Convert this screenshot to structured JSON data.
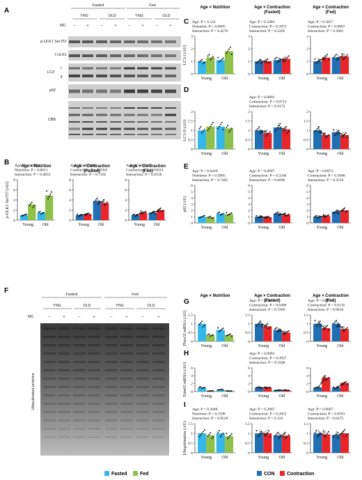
{
  "panel_letters": [
    "A",
    "B",
    "C",
    "D",
    "E",
    "F",
    "G",
    "H",
    "I"
  ],
  "blot_a": {
    "groups": [
      "Fasted",
      "Fed"
    ],
    "subgroups": [
      "YNG",
      "OLD",
      "YNG",
      "OLD"
    ],
    "mc_label": "MC",
    "mc_signs": [
      "−",
      "+",
      "−",
      "+",
      "−",
      "+",
      "−",
      "+"
    ],
    "rows": [
      "p-ULK1 Ser757",
      "t-ULK1",
      "LC3",
      "p62",
      "CBB"
    ],
    "lc3_bands": [
      "I",
      "II"
    ]
  },
  "blot_f": {
    "groups": [
      "Fasted",
      "Fed"
    ],
    "subgroups": [
      "YNG",
      "OLD",
      "YNG",
      "OLD"
    ],
    "mc_label": "MC",
    "mc_signs": [
      "−",
      "+",
      "−",
      "+",
      "−",
      "+",
      "−",
      "+"
    ],
    "ylabel": "Ubiquitinated proteins"
  },
  "legend": {
    "fasted": "Fasted",
    "fed": "Fed",
    "con": "CON",
    "contraction": "Contraction",
    "colors": {
      "fasted": "#35b6e8",
      "fed": "#8fc04a",
      "con": "#1f6fb5",
      "contraction": "#e8262a"
    }
  },
  "chart_data": [
    {
      "id": "B1",
      "type": "bar",
      "title": "Age × Nutrition",
      "ylabel": "p-ULK1 Ser757 (AU)",
      "categories": [
        "Young",
        "Old"
      ],
      "ylim": [
        0,
        8
      ],
      "yticks": [
        "0",
        "2",
        "4",
        "6",
        "8"
      ],
      "series": [
        {
          "name": "Fasted",
          "values": [
            1.0,
            1.5
          ]
        },
        {
          "name": "Fed",
          "values": [
            3.1,
            4.9
          ]
        }
      ],
      "stats": [
        "Age: P = 0.0001",
        "Nutrition: P = 0.0011",
        "Interaction: P = 0.4855"
      ]
    },
    {
      "id": "B2",
      "type": "bar",
      "title": "Age × Contraction (Fasted)",
      "categories": [
        "Young",
        "Old"
      ],
      "ylim": [
        0,
        8
      ],
      "yticks": [
        "0",
        "2",
        "4",
        "6",
        "8"
      ],
      "series": [
        {
          "name": "CON",
          "values": [
            1.0,
            3.8
          ]
        },
        {
          "name": "Contraction",
          "values": [
            1.2,
            3.4
          ]
        }
      ],
      "stats": [
        "Age: P = 0.0008",
        "Contraction: P = 0.9301",
        "Interaction: P = 0.7392"
      ]
    },
    {
      "id": "B3",
      "type": "bar",
      "title": "Age × Contraction (Fed)",
      "categories": [
        "Young",
        "Old"
      ],
      "ylim": [
        0,
        8
      ],
      "yticks": [
        "0",
        "2",
        "4",
        "6",
        "8"
      ],
      "series": [
        {
          "name": "CON",
          "values": [
            1.0,
            1.5
          ]
        },
        {
          "name": "Contraction",
          "values": [
            1.5,
            2.0
          ]
        }
      ],
      "stats": [
        "Age: P = 0.0377",
        "Contraction: P = 0.0014",
        "Interaction: P = 0.8558"
      ]
    },
    {
      "id": "C1",
      "type": "bar",
      "title": "Age × Nutrition",
      "ylabel": "LC3-I (AU)",
      "categories": [
        "Young",
        "Old"
      ],
      "ylim": [
        0,
        3
      ],
      "yticks": [
        "0",
        "1",
        "2",
        "3"
      ],
      "series": [
        {
          "name": "Fasted",
          "values": [
            1.0,
            1.1
          ]
        },
        {
          "name": "Fed",
          "values": [
            1.3,
            1.8
          ]
        }
      ],
      "stats": [
        "Age: P = 0.122",
        "Nutrition: P = 0.0005",
        "Interaction: P = 0.4576"
      ]
    },
    {
      "id": "C2",
      "type": "bar",
      "title": "Age × Contraction (Fasted)",
      "categories": [
        "Young",
        "Old"
      ],
      "ylim": [
        0,
        3
      ],
      "yticks": [
        "0",
        "1",
        "2",
        "3"
      ],
      "series": [
        {
          "name": "CON",
          "values": [
            1.0,
            1.1
          ]
        },
        {
          "name": "Contraction",
          "values": [
            1.0,
            1.2
          ]
        }
      ],
      "stats": [
        "Age: P = 0.3285",
        "Contraction: P = 0.3473",
        "Interaction: P = 0.5205"
      ]
    },
    {
      "id": "C3",
      "type": "bar",
      "title": "Age × Contraction (Fed)",
      "categories": [
        "Young",
        "Old"
      ],
      "ylim": [
        0,
        3
      ],
      "yticks": [
        "0",
        "1",
        "2",
        "3"
      ],
      "series": [
        {
          "name": "CON",
          "values": [
            1.0,
            1.3
          ]
        },
        {
          "name": "Contraction",
          "values": [
            1.3,
            1.4
          ]
        }
      ],
      "stats": [
        "Age: P = 0.5057",
        "Contraction: P = 0.0067",
        "Interaction: P = 0.3061"
      ]
    },
    {
      "id": "D1",
      "type": "bar",
      "ylabel": "LC3-II (AU)",
      "categories": [
        "Young",
        "Old"
      ],
      "ylim": [
        0,
        2
      ],
      "yticks": [
        "0",
        "0.5",
        "1",
        "1.5",
        "2"
      ],
      "series": [
        {
          "name": "Fasted",
          "values": [
            1.0,
            1.2
          ]
        },
        {
          "name": "Fed",
          "values": [
            1.2,
            1.1
          ]
        }
      ],
      "stats": []
    },
    {
      "id": "D2",
      "type": "bar",
      "categories": [
        "Young",
        "Old"
      ],
      "ylim": [
        0,
        2
      ],
      "yticks": [
        "0",
        "0.5",
        "1",
        "1.5",
        "2"
      ],
      "series": [
        {
          "name": "CON",
          "values": [
            1.0,
            1.15
          ]
        },
        {
          "name": "Contraction",
          "values": [
            0.85,
            1.05
          ]
        }
      ],
      "stats": [
        "Age: P = 0.0891",
        "Contraction: P = 0.0713",
        "Interaction: P = 0.9172"
      ]
    },
    {
      "id": "D3",
      "type": "bar",
      "categories": [
        "Young",
        "Old"
      ],
      "ylim": [
        0,
        2
      ],
      "yticks": [
        "0",
        "0.5",
        "1",
        "1.5",
        "2"
      ],
      "series": [
        {
          "name": "CON",
          "values": [
            1.0,
            0.9
          ]
        },
        {
          "name": "Contraction",
          "values": [
            0.75,
            0.75
          ]
        }
      ],
      "stats": []
    },
    {
      "id": "E1",
      "type": "bar",
      "ylabel": "p62 (AU)",
      "categories": [
        "Young",
        "Old"
      ],
      "ylim": [
        0,
        6
      ],
      "yticks": [
        "0",
        "1",
        "2",
        "3",
        "4",
        "5",
        "6"
      ],
      "series": [
        {
          "name": "Fasted",
          "values": [
            1.0,
            1.5
          ]
        },
        {
          "name": "Fed",
          "values": [
            0.9,
            1.4
          ]
        }
      ],
      "stats": [
        "Age: P = 0.0249",
        "Nutrition: P = 0.5805",
        "Interaction: P = 0.7485"
      ]
    },
    {
      "id": "E2",
      "type": "bar",
      "categories": [
        "Young",
        "Old"
      ],
      "ylim": [
        0,
        6
      ],
      "yticks": [
        "0",
        "1",
        "2",
        "3",
        "4",
        "5",
        "6"
      ],
      "series": [
        {
          "name": "CON",
          "values": [
            1.0,
            1.5
          ]
        },
        {
          "name": "Contraction",
          "values": [
            0.9,
            1.3
          ]
        }
      ],
      "stats": [
        "Age: P = 0.0907",
        "Contraction: P = 0.3344",
        "Interaction: P = 0.6096"
      ]
    },
    {
      "id": "E3",
      "type": "bar",
      "categories": [
        "Young",
        "Old"
      ],
      "ylim": [
        0,
        6
      ],
      "yticks": [
        "0",
        "1",
        "2",
        "3",
        "4",
        "5",
        "6"
      ],
      "series": [
        {
          "name": "CON",
          "values": [
            1.0,
            1.8
          ]
        },
        {
          "name": "Contraction",
          "values": [
            1.1,
            2.0
          ]
        }
      ],
      "stats": [
        "Age: P = 0.0973",
        "Contraction: P = 0.5846",
        "Interaction: P = 0.3516"
      ]
    },
    {
      "id": "G1",
      "type": "bar",
      "title": "Age × Nutrition",
      "ylabel": "Fbxo32 mRNA (AU)",
      "categories": [
        "Young",
        "Old"
      ],
      "ylim": [
        0,
        1.5
      ],
      "yticks": [
        "0",
        "0.5",
        "1",
        "1.5"
      ],
      "series": [
        {
          "name": "Fasted",
          "values": [
            1.0,
            0.65
          ]
        },
        {
          "name": "Fed",
          "values": [
            0.35,
            0.35
          ]
        }
      ],
      "stats": []
    },
    {
      "id": "G2",
      "type": "bar",
      "title": "Age × Contraction (Fasted)",
      "categories": [
        "Young",
        "Old"
      ],
      "ylim": [
        0,
        1.5
      ],
      "yticks": [
        "0",
        "0.5",
        "1",
        "1.5"
      ],
      "series": [
        {
          "name": "CON",
          "values": [
            1.0,
            0.65
          ]
        },
        {
          "name": "Contraction",
          "values": [
            0.85,
            0.5
          ]
        }
      ],
      "stats": [
        "Age: P = 0.0052",
        "Contraction: P = 0.0496",
        "Interaction: P = 0.7289"
      ]
    },
    {
      "id": "G3",
      "type": "bar",
      "title": "Age × Contraction (Fed)",
      "categories": [
        "Young",
        "Old"
      ],
      "ylim": [
        0,
        1.5
      ],
      "yticks": [
        "0",
        "0.5",
        "1",
        "1.5"
      ],
      "series": [
        {
          "name": "CON",
          "values": [
            1.0,
            1.0
          ]
        },
        {
          "name": "Contraction",
          "values": [
            0.75,
            0.7
          ]
        }
      ],
      "stats": [
        "Age: P = 0.9914",
        "Contraction: P = 0.0135",
        "Interaction: P = 0.9816"
      ]
    },
    {
      "id": "H1",
      "type": "bar",
      "ylabel": "Trim63 mRNA (AU)",
      "categories": [
        "Young",
        "Old"
      ],
      "ylim": [
        0,
        6
      ],
      "yticks": [
        "0",
        "2",
        "4",
        "6"
      ],
      "series": [
        {
          "name": "Fasted",
          "values": [
            1.0,
            0.45
          ]
        },
        {
          "name": "Fed",
          "values": [
            0.15,
            0.15
          ]
        }
      ],
      "stats": []
    },
    {
      "id": "H2",
      "type": "bar",
      "categories": [
        "Young",
        "Old"
      ],
      "ylim": [
        0,
        6
      ],
      "yticks": [
        "0",
        "2",
        "4",
        "6"
      ],
      "series": [
        {
          "name": "CON",
          "values": [
            1.0,
            0.35
          ]
        },
        {
          "name": "Contraction",
          "values": [
            1.0,
            0.35
          ]
        }
      ],
      "stats": [
        "Age: P < 0.0001",
        "Contraction: P = 0.4927",
        "Interaction: P = 0.5948"
      ]
    },
    {
      "id": "H3",
      "type": "bar",
      "categories": [
        "Young",
        "Old"
      ],
      "ylim": [
        0,
        6
      ],
      "yticks": [
        "0",
        "2",
        "4",
        "6"
      ],
      "series": [
        {
          "name": "CON",
          "values": [
            1.0,
            1.0
          ]
        },
        {
          "name": "Contraction",
          "values": [
            3.5,
            2.2
          ]
        }
      ],
      "stats": []
    },
    {
      "id": "I1",
      "type": "bar",
      "ylabel": "Ubiquitination (AU)",
      "categories": [
        "Young",
        "Old"
      ],
      "ylim": [
        0,
        1.5
      ],
      "yticks": [
        "0",
        "0.5",
        "1",
        "1.5"
      ],
      "series": [
        {
          "name": "Fasted",
          "values": [
            1.0,
            1.0
          ]
        },
        {
          "name": "Fed",
          "values": [
            0.9,
            0.85
          ]
        }
      ],
      "stats": [
        "Age: P = 0.3948",
        "Nutrition: P = 0.1598",
        "Interaction: P = 0.9529"
      ]
    },
    {
      "id": "I2",
      "type": "bar",
      "categories": [
        "Young",
        "Old"
      ],
      "ylim": [
        0,
        1.5
      ],
      "yticks": [
        "0",
        "0.5",
        "1",
        "1.5"
      ],
      "series": [
        {
          "name": "CON",
          "values": [
            1.0,
            0.9
          ]
        },
        {
          "name": "Contraction",
          "values": [
            1.0,
            0.88
          ]
        }
      ],
      "stats": [
        "Age: P = 0.2907",
        "Contraction: P = 0.2052",
        "Interaction: P = 0.332"
      ]
    },
    {
      "id": "I3",
      "type": "bar",
      "categories": [
        "Young",
        "Old"
      ],
      "ylim": [
        0,
        1.5
      ],
      "yticks": [
        "0",
        "0.5",
        "1",
        "1.5"
      ],
      "series": [
        {
          "name": "CON",
          "values": [
            1.0,
            0.92
          ]
        },
        {
          "name": "Contraction",
          "values": [
            0.95,
            1.0
          ]
        }
      ],
      "stats": [
        "Age: P = 0.9007",
        "Contraction: P = 0.6591",
        "Interaction: P = 0.0475"
      ]
    }
  ]
}
